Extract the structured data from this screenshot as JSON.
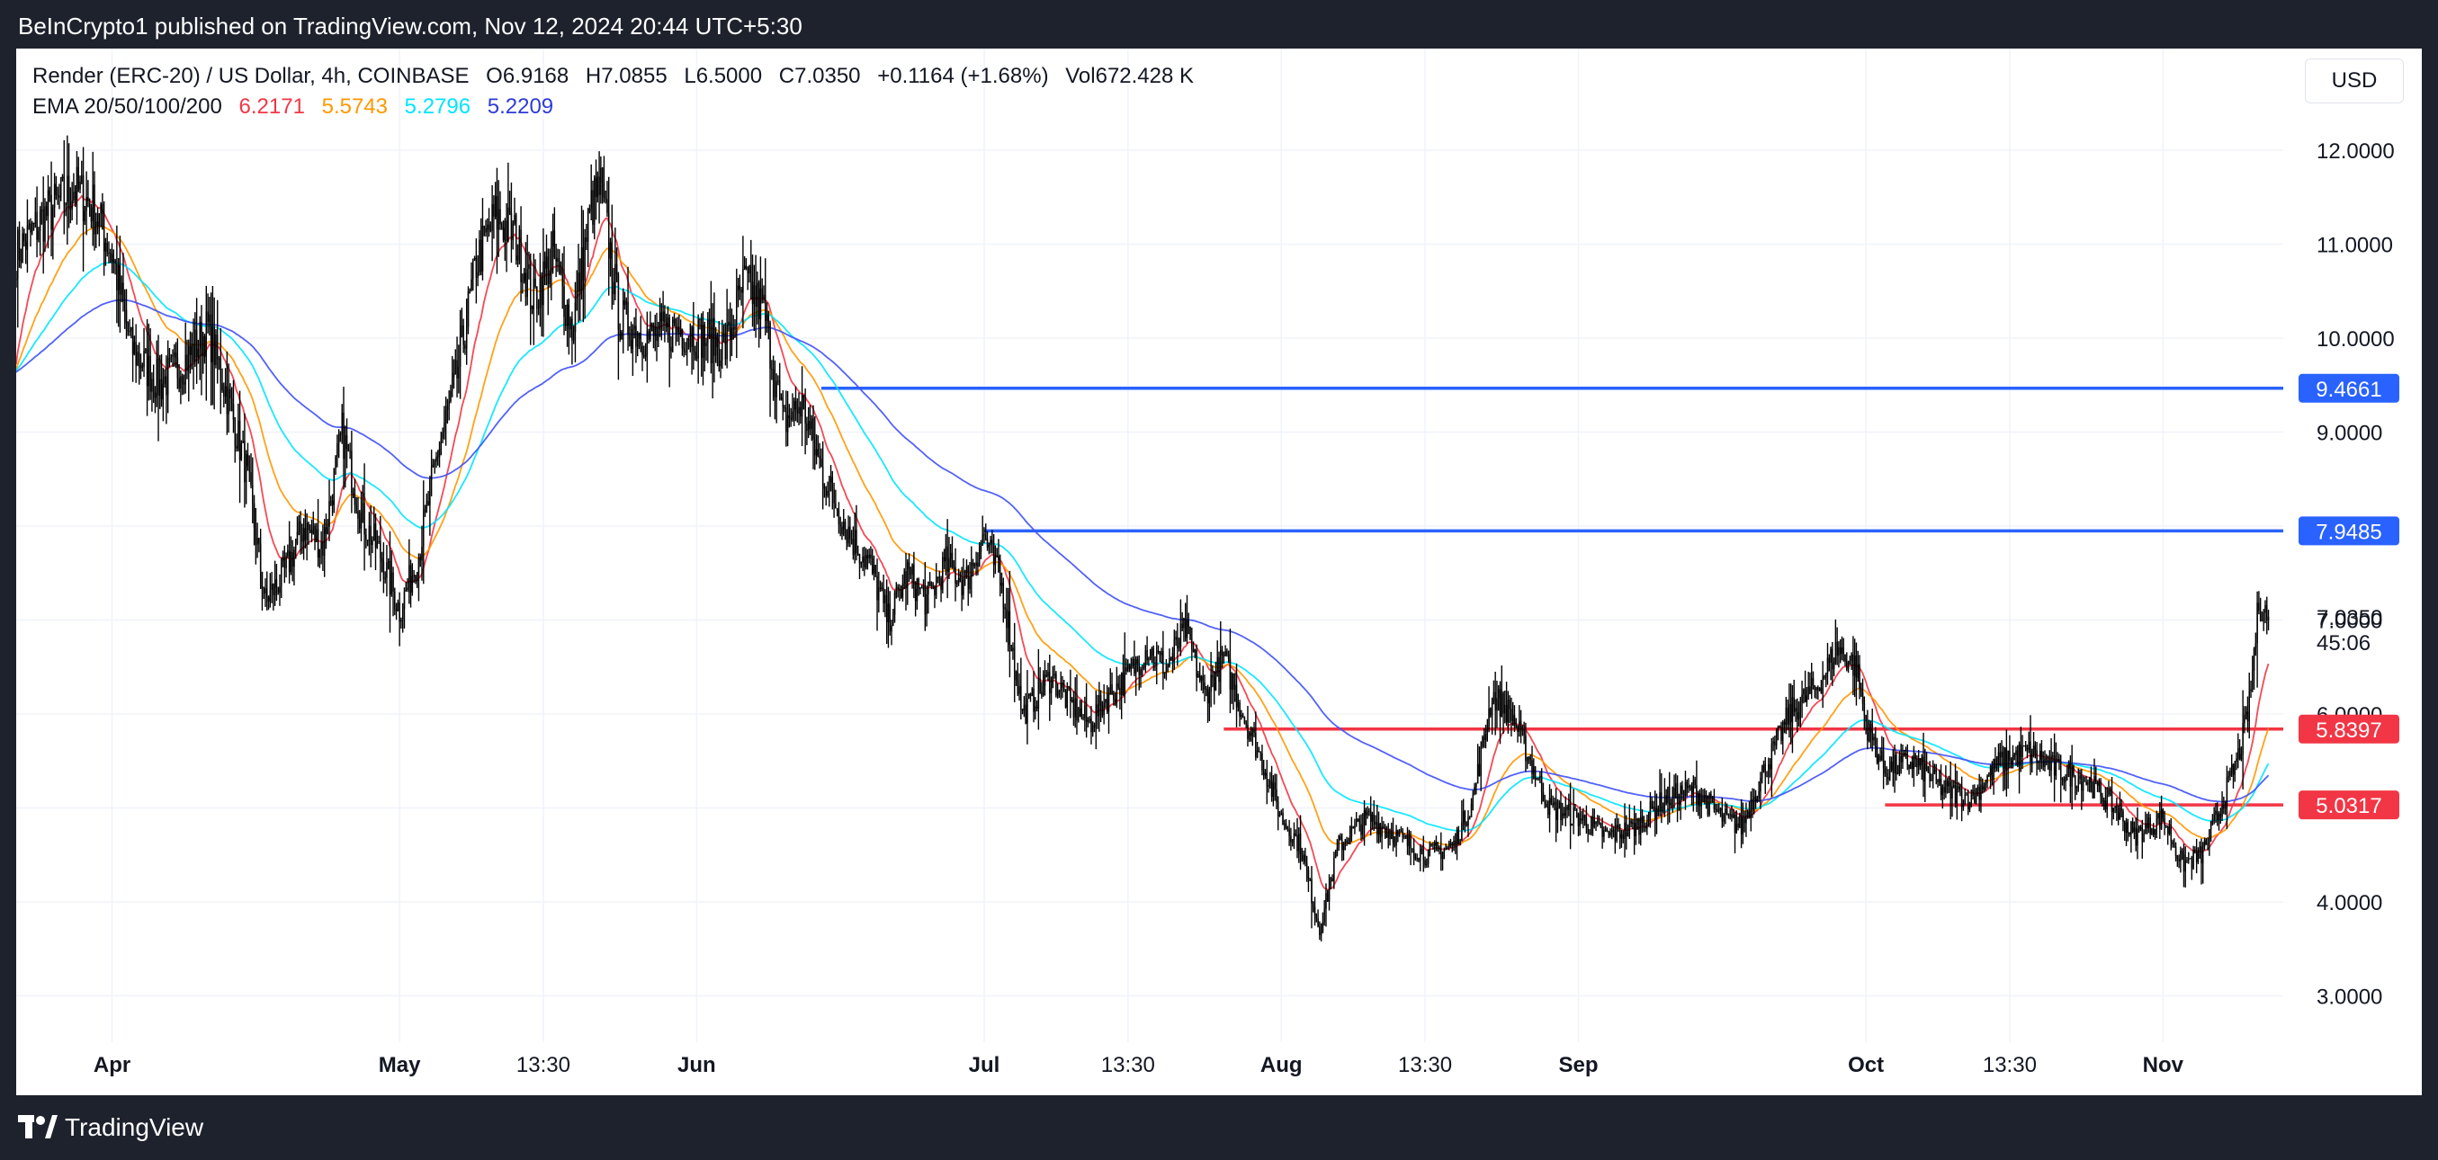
{
  "header": {
    "publisher_text": "BeInCrypto1 published on TradingView.com, Nov 12, 2024 20:44 UTC+5:30"
  },
  "legend": {
    "symbol": "Render (ERC-20) / US Dollar, 4h, COINBASE",
    "open": "O6.9168",
    "high": "H7.0855",
    "low": "L6.5000",
    "close": "C7.0350",
    "change": "+0.1164 (+1.68%)",
    "volume": "Vol672.428 K",
    "ema_label": "EMA 20/50/100/200",
    "ema_values": [
      "6.2171",
      "5.5743",
      "5.2796",
      "5.2209"
    ]
  },
  "currency_button": "USD",
  "countdown": "45:06",
  "footer": {
    "brand": "TradingView"
  },
  "colors": {
    "ema20": "#f23645",
    "ema50": "#ff9800",
    "ema100": "#00e5ff",
    "ema200": "#3f51f5",
    "resistance": "#2962ff",
    "support": "#f23645",
    "candles": "#000000"
  },
  "chart_data": {
    "type": "candlestick",
    "interval": "4h",
    "y_axis_ticks": [
      12,
      11,
      10,
      9,
      8,
      7,
      6,
      5,
      4,
      3
    ],
    "y_axis_tick_labels": [
      "12.0000",
      "11.0000",
      "10.0000",
      "9.0000",
      "8.0000",
      "7.0000",
      "6.0000",
      "5.0000",
      "4.0000",
      "3.0000"
    ],
    "ylim": [
      2.55,
      12.6
    ],
    "x_axis_labels": [
      {
        "label": "Apr",
        "date": "2024-04-01"
      },
      {
        "label": "May",
        "date": "2024-05-01"
      },
      {
        "label": "13:30",
        "date": "2024-05-16"
      },
      {
        "label": "Jun",
        "date": "2024-06-01"
      },
      {
        "label": "Jul",
        "date": "2024-07-01"
      },
      {
        "label": "13:30",
        "date": "2024-07-16"
      },
      {
        "label": "Aug",
        "date": "2024-08-01"
      },
      {
        "label": "13:30",
        "date": "2024-08-16"
      },
      {
        "label": "Sep",
        "date": "2024-09-01"
      },
      {
        "label": "Oct",
        "date": "2024-10-01"
      },
      {
        "label": "13:30",
        "date": "2024-10-16"
      },
      {
        "label": "Nov",
        "date": "2024-11-01"
      }
    ],
    "xlim": [
      "2024-03-22",
      "2024-11-28"
    ],
    "last_price": "7.0350",
    "horizontal_levels": [
      {
        "value": 9.4661,
        "label": "9.4661",
        "kind": "resistance",
        "start": "2024-06-14"
      },
      {
        "value": 7.9485,
        "label": "7.9485",
        "kind": "resistance",
        "start": "2024-07-01"
      },
      {
        "value": 5.8397,
        "label": "5.8397",
        "kind": "support",
        "start": "2024-07-26"
      },
      {
        "value": 5.0317,
        "label": "5.0317",
        "kind": "support",
        "start": "2024-10-03"
      }
    ],
    "price_path": [
      [
        "2024-03-22",
        10.9
      ],
      [
        "2024-03-25",
        11.3
      ],
      [
        "2024-03-28",
        11.6
      ],
      [
        "2024-03-30",
        11.4
      ],
      [
        "2024-04-01",
        10.9
      ],
      [
        "2024-04-03",
        9.9
      ],
      [
        "2024-04-06",
        9.5
      ],
      [
        "2024-04-09",
        9.8
      ],
      [
        "2024-04-11",
        10.1
      ],
      [
        "2024-04-13",
        9.4
      ],
      [
        "2024-04-15",
        8.6
      ],
      [
        "2024-04-17",
        7.2
      ],
      [
        "2024-04-19",
        7.5
      ],
      [
        "2024-04-21",
        8.0
      ],
      [
        "2024-04-23",
        7.8
      ],
      [
        "2024-04-25",
        9.0
      ],
      [
        "2024-04-27",
        8.1
      ],
      [
        "2024-04-29",
        7.7
      ],
      [
        "2024-05-01",
        7.1
      ],
      [
        "2024-05-03",
        7.7
      ],
      [
        "2024-05-05",
        8.8
      ],
      [
        "2024-05-07",
        9.6
      ],
      [
        "2024-05-09",
        10.8
      ],
      [
        "2024-05-11",
        11.3
      ],
      [
        "2024-05-13",
        11.1
      ],
      [
        "2024-05-15",
        10.4
      ],
      [
        "2024-05-17",
        10.9
      ],
      [
        "2024-05-19",
        10.1
      ],
      [
        "2024-05-21",
        11.4
      ],
      [
        "2024-05-22",
        11.6
      ],
      [
        "2024-05-24",
        10.2
      ],
      [
        "2024-05-27",
        10.0
      ],
      [
        "2024-05-30",
        10.1
      ],
      [
        "2024-06-02",
        10.0
      ],
      [
        "2024-06-04",
        9.9
      ],
      [
        "2024-06-06",
        10.6
      ],
      [
        "2024-06-08",
        10.3
      ],
      [
        "2024-06-10",
        9.1
      ],
      [
        "2024-06-12",
        9.3
      ],
      [
        "2024-06-14",
        8.6
      ],
      [
        "2024-06-17",
        7.9
      ],
      [
        "2024-06-19",
        7.6
      ],
      [
        "2024-06-21",
        7.0
      ],
      [
        "2024-06-23",
        7.5
      ],
      [
        "2024-06-25",
        7.2
      ],
      [
        "2024-06-27",
        7.6
      ],
      [
        "2024-06-29",
        7.4
      ],
      [
        "2024-07-01",
        7.9
      ],
      [
        "2024-07-03",
        7.3
      ],
      [
        "2024-07-05",
        6.0
      ],
      [
        "2024-07-08",
        6.4
      ],
      [
        "2024-07-10",
        6.1
      ],
      [
        "2024-07-12",
        5.9
      ],
      [
        "2024-07-14",
        6.2
      ],
      [
        "2024-07-16",
        6.4
      ],
      [
        "2024-07-18",
        6.7
      ],
      [
        "2024-07-20",
        6.5
      ],
      [
        "2024-07-22",
        6.9
      ],
      [
        "2024-07-24",
        6.2
      ],
      [
        "2024-07-26",
        6.6
      ],
      [
        "2024-07-28",
        6.0
      ],
      [
        "2024-07-30",
        5.5
      ],
      [
        "2024-08-01",
        4.9
      ],
      [
        "2024-08-03",
        4.6
      ],
      [
        "2024-08-05",
        3.7
      ],
      [
        "2024-08-07",
        4.6
      ],
      [
        "2024-08-10",
        4.9
      ],
      [
        "2024-08-13",
        4.7
      ],
      [
        "2024-08-16",
        4.5
      ],
      [
        "2024-08-19",
        4.6
      ],
      [
        "2024-08-21",
        5.1
      ],
      [
        "2024-08-23",
        6.2
      ],
      [
        "2024-08-25",
        6.0
      ],
      [
        "2024-08-27",
        5.5
      ],
      [
        "2024-08-29",
        5.0
      ],
      [
        "2024-09-01",
        4.9
      ],
      [
        "2024-09-04",
        4.7
      ],
      [
        "2024-09-07",
        4.8
      ],
      [
        "2024-09-10",
        5.1
      ],
      [
        "2024-09-13",
        5.2
      ],
      [
        "2024-09-16",
        4.9
      ],
      [
        "2024-09-18",
        4.8
      ],
      [
        "2024-09-20",
        5.3
      ],
      [
        "2024-09-23",
        6.0
      ],
      [
        "2024-09-26",
        6.3
      ],
      [
        "2024-09-28",
        6.7
      ],
      [
        "2024-09-30",
        6.5
      ],
      [
        "2024-10-01",
        5.9
      ],
      [
        "2024-10-03",
        5.4
      ],
      [
        "2024-10-06",
        5.5
      ],
      [
        "2024-10-09",
        5.2
      ],
      [
        "2024-10-12",
        5.1
      ],
      [
        "2024-10-15",
        5.5
      ],
      [
        "2024-10-18",
        5.6
      ],
      [
        "2024-10-21",
        5.4
      ],
      [
        "2024-10-24",
        5.3
      ],
      [
        "2024-10-27",
        5.0
      ],
      [
        "2024-10-29",
        4.7
      ],
      [
        "2024-11-01",
        4.9
      ],
      [
        "2024-11-03",
        4.4
      ],
      [
        "2024-11-05",
        4.5
      ],
      [
        "2024-11-07",
        5.0
      ],
      [
        "2024-11-09",
        5.6
      ],
      [
        "2024-11-10",
        6.1
      ],
      [
        "2024-11-11",
        7.2
      ],
      [
        "2024-11-12",
        7.035
      ]
    ]
  }
}
